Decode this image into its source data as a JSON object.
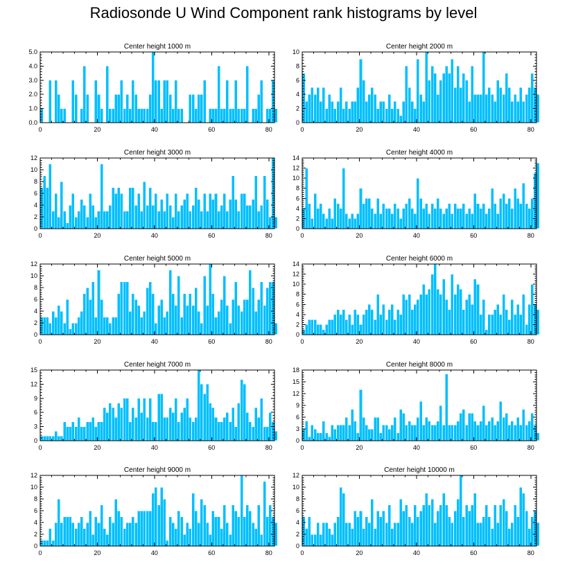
{
  "page_title": "Radiosonde U Wind Component rank histograms by level",
  "colors": {
    "bar": "#00bfff",
    "axis": "#000000"
  },
  "chart_data": [
    {
      "type": "bar",
      "title": "Center height 1000 m",
      "xlabel": "",
      "ylabel": "",
      "xlim": [
        0,
        82
      ],
      "ylim": [
        0,
        5
      ],
      "yticks": [
        0,
        1,
        2,
        3,
        4,
        5
      ],
      "ytick_labels": [
        "0.0",
        "1.0",
        "2.0",
        "3.0",
        "4.0",
        "5.0"
      ],
      "xticks": [
        0,
        20,
        40,
        60,
        80
      ],
      "values": [
        1,
        0,
        0,
        3,
        0,
        3,
        2,
        1,
        1,
        0,
        0,
        3,
        2,
        0,
        1,
        4,
        2,
        0,
        0,
        3,
        2,
        1,
        0,
        4,
        1,
        1,
        2,
        2,
        3,
        1,
        2,
        1,
        3,
        2,
        1,
        1,
        1,
        1,
        2,
        5,
        3,
        3,
        1,
        3,
        3,
        2,
        1,
        3,
        1,
        1,
        0,
        0,
        2,
        2,
        1,
        2,
        2,
        3,
        0,
        1,
        1,
        1,
        4,
        1,
        1,
        3,
        1,
        1,
        3,
        1,
        1,
        1,
        4,
        0,
        1,
        1,
        2,
        3,
        0,
        1,
        1,
        3,
        1
      ]
    },
    {
      "type": "bar",
      "title": "Center height 2000 m",
      "xlabel": "",
      "ylabel": "",
      "xlim": [
        0,
        82
      ],
      "ylim": [
        0,
        10
      ],
      "yticks": [
        0,
        2,
        4,
        6,
        8,
        10
      ],
      "ytick_labels": [
        "0",
        "2",
        "4",
        "6",
        "8",
        "10"
      ],
      "xticks": [
        0,
        20,
        40,
        60,
        80
      ],
      "values": [
        7,
        3,
        4,
        5,
        4,
        5,
        3,
        5,
        2,
        4,
        3,
        2,
        3,
        5,
        2,
        3,
        2,
        3,
        3,
        5,
        9,
        6,
        3,
        4,
        5,
        4,
        2,
        3,
        3,
        2,
        4,
        2,
        3,
        2,
        1,
        3,
        8,
        5,
        3,
        2,
        9,
        4,
        3,
        10,
        6,
        8,
        7,
        4,
        6,
        7,
        8,
        7,
        9,
        5,
        8,
        5,
        7,
        6,
        3,
        8,
        4,
        4,
        4,
        10,
        4,
        5,
        4,
        3,
        6,
        5,
        4,
        7,
        5,
        3,
        4,
        3,
        5,
        3,
        4,
        5,
        7,
        5,
        4
      ]
    },
    {
      "type": "bar",
      "title": "Center height 3000 m",
      "xlabel": "",
      "ylabel": "",
      "xlim": [
        0,
        82
      ],
      "ylim": [
        0,
        12
      ],
      "yticks": [
        0,
        2,
        4,
        6,
        8,
        10,
        12
      ],
      "ytick_labels": [
        "0",
        "2",
        "4",
        "6",
        "8",
        "10",
        "12"
      ],
      "xticks": [
        0,
        20,
        40,
        60,
        80
      ],
      "values": [
        7,
        9,
        7,
        11,
        3,
        6,
        2,
        8,
        3,
        1,
        4,
        6,
        2,
        3,
        5,
        4,
        2,
        6,
        4,
        2,
        3,
        11,
        3,
        3,
        4,
        7,
        6,
        7,
        6,
        3,
        3,
        7,
        7,
        4,
        6,
        3,
        8,
        4,
        7,
        4,
        6,
        3,
        5,
        3,
        6,
        4,
        2,
        6,
        3,
        4,
        5,
        6,
        3,
        4,
        7,
        5,
        3,
        6,
        3,
        6,
        5,
        6,
        3,
        4,
        6,
        3,
        5,
        9,
        5,
        3,
        6,
        6,
        4,
        4,
        5,
        9,
        3,
        4,
        9,
        5,
        2,
        12,
        2
      ]
    },
    {
      "type": "bar",
      "title": "Center height 4000 m",
      "xlabel": "",
      "ylabel": "",
      "xlim": [
        0,
        82
      ],
      "ylim": [
        0,
        14
      ],
      "yticks": [
        0,
        2,
        4,
        6,
        8,
        10,
        12,
        14
      ],
      "ytick_labels": [
        "0",
        "2",
        "4",
        "6",
        "8",
        "10",
        "12",
        "14"
      ],
      "xticks": [
        0,
        20,
        40,
        60,
        80
      ],
      "values": [
        4,
        12,
        5,
        2,
        7,
        4,
        5,
        3,
        2,
        4,
        2,
        6,
        5,
        4,
        12,
        3,
        2,
        3,
        2,
        3,
        8,
        5,
        6,
        6,
        4,
        3,
        6,
        3,
        5,
        4,
        4,
        3,
        5,
        4,
        2,
        4,
        5,
        6,
        4,
        3,
        10,
        6,
        4,
        5,
        3,
        5,
        4,
        6,
        4,
        3,
        4,
        5,
        3,
        5,
        4,
        4,
        5,
        3,
        4,
        3,
        7,
        5,
        4,
        5,
        3,
        4,
        8,
        5,
        3,
        6,
        7,
        5,
        6,
        4,
        8,
        6,
        5,
        9,
        5,
        4,
        6,
        11,
        13
      ]
    },
    {
      "type": "bar",
      "title": "Center height 5000 m",
      "xlabel": "",
      "ylabel": "",
      "xlim": [
        0,
        82
      ],
      "ylim": [
        0,
        12
      ],
      "yticks": [
        0,
        2,
        4,
        6,
        8,
        10,
        12
      ],
      "ytick_labels": [
        "0",
        "2",
        "4",
        "6",
        "8",
        "10",
        "12"
      ],
      "xticks": [
        0,
        20,
        40,
        60,
        80
      ],
      "values": [
        3,
        3,
        3,
        2,
        4,
        3,
        5,
        4,
        2,
        6,
        1,
        2,
        2,
        3,
        4,
        7,
        8,
        6,
        9,
        3,
        11,
        6,
        3,
        3,
        2,
        3,
        3,
        7,
        9,
        9,
        9,
        4,
        7,
        6,
        5,
        3,
        4,
        8,
        9,
        7,
        2,
        5,
        6,
        3,
        4,
        11,
        7,
        5,
        10,
        3,
        7,
        5,
        7,
        5,
        8,
        4,
        2,
        10,
        5,
        12,
        7,
        3,
        4,
        6,
        10,
        5,
        2,
        6,
        9,
        5,
        4,
        6,
        6,
        11,
        8,
        4,
        6,
        9,
        5,
        8,
        9,
        9,
        2
      ]
    },
    {
      "type": "bar",
      "title": "Center height 6000 m",
      "xlabel": "",
      "ylabel": "",
      "xlim": [
        0,
        82
      ],
      "ylim": [
        0,
        14
      ],
      "yticks": [
        0,
        2,
        4,
        6,
        8,
        10,
        12,
        14
      ],
      "ytick_labels": [
        "0",
        "2",
        "4",
        "6",
        "8",
        "10",
        "12",
        "14"
      ],
      "xticks": [
        0,
        20,
        40,
        60,
        80
      ],
      "values": [
        1,
        2,
        3,
        3,
        3,
        2,
        2,
        1,
        2,
        3,
        3,
        4,
        5,
        4,
        5,
        3,
        4,
        2,
        5,
        4,
        2,
        4,
        5,
        6,
        5,
        3,
        8,
        4,
        6,
        3,
        5,
        6,
        3,
        5,
        4,
        8,
        7,
        8,
        5,
        6,
        7,
        8,
        10,
        8,
        9,
        12,
        14,
        9,
        8,
        11,
        7,
        5,
        12,
        8,
        10,
        9,
        5,
        7,
        8,
        6,
        11,
        10,
        4,
        7,
        1,
        4,
        4,
        5,
        6,
        4,
        8,
        5,
        3,
        7,
        4,
        6,
        4,
        8,
        2,
        6,
        10,
        6,
        5
      ]
    },
    {
      "type": "bar",
      "title": "Center height 7000 m",
      "xlabel": "",
      "ylabel": "",
      "xlim": [
        0,
        82
      ],
      "ylim": [
        0,
        15
      ],
      "yticks": [
        0,
        3,
        6,
        9,
        12,
        15
      ],
      "ytick_labels": [
        "0",
        "3",
        "6",
        "9",
        "12",
        "15"
      ],
      "xticks": [
        0,
        20,
        40,
        60,
        80
      ],
      "values": [
        1,
        1,
        1,
        1,
        1,
        2,
        1,
        1,
        4,
        3,
        3,
        4,
        3,
        5,
        3,
        3,
        4,
        4,
        5,
        3,
        4,
        4,
        7,
        6,
        8,
        7,
        5,
        8,
        7,
        9,
        9,
        4,
        7,
        5,
        9,
        6,
        9,
        5,
        9,
        4,
        4,
        10,
        10,
        5,
        5,
        7,
        6,
        9,
        4,
        6,
        7,
        9,
        5,
        4,
        5,
        15,
        12,
        10,
        12,
        8,
        7,
        5,
        4,
        4,
        5,
        6,
        4,
        7,
        3,
        8,
        13,
        12,
        6,
        4,
        3,
        7,
        5,
        9,
        3,
        3,
        6,
        4,
        2
      ]
    },
    {
      "type": "bar",
      "title": "Center height 8000 m",
      "xlabel": "",
      "ylabel": "",
      "xlim": [
        0,
        82
      ],
      "ylim": [
        0,
        18
      ],
      "yticks": [
        0,
        3,
        6,
        9,
        12,
        15,
        18
      ],
      "ytick_labels": [
        "0",
        "3",
        "6",
        "9",
        "12",
        "15",
        "18"
      ],
      "xticks": [
        0,
        20,
        40,
        60,
        80
      ],
      "values": [
        3,
        5,
        1,
        4,
        3,
        2,
        2,
        5,
        2,
        1,
        4,
        3,
        4,
        4,
        4,
        6,
        4,
        8,
        5,
        2,
        13,
        6,
        4,
        3,
        3,
        6,
        6,
        2,
        4,
        4,
        3,
        4,
        6,
        2,
        8,
        7,
        4,
        5,
        4,
        4,
        6,
        10,
        4,
        6,
        5,
        4,
        4,
        5,
        9,
        4,
        17,
        4,
        4,
        4,
        5,
        7,
        8,
        4,
        7,
        7,
        5,
        4,
        5,
        9,
        4,
        5,
        6,
        4,
        5,
        10,
        6,
        7,
        4,
        5,
        4,
        6,
        4,
        8,
        4,
        5,
        7,
        4,
        2
      ]
    },
    {
      "type": "bar",
      "title": "Center height 9000 m",
      "xlabel": "",
      "ylabel": "",
      "xlim": [
        0,
        82
      ],
      "ylim": [
        0,
        12
      ],
      "yticks": [
        0,
        2,
        4,
        6,
        8,
        10,
        12
      ],
      "ytick_labels": [
        "0",
        "2",
        "4",
        "6",
        "8",
        "10",
        "12"
      ],
      "xticks": [
        0,
        20,
        40,
        60,
        80
      ],
      "values": [
        1,
        1,
        1,
        3,
        1,
        4,
        8,
        4,
        5,
        5,
        5,
        4,
        3,
        4,
        5,
        3,
        4,
        6,
        2,
        5,
        4,
        7,
        3,
        2,
        5,
        4,
        8,
        6,
        5,
        3,
        4,
        4,
        5,
        4,
        6,
        6,
        6,
        6,
        6,
        9,
        10,
        7,
        10,
        8,
        1,
        5,
        4,
        3,
        6,
        5,
        2,
        4,
        3,
        9,
        6,
        4,
        8,
        7,
        4,
        2,
        6,
        5,
        5,
        3,
        7,
        4,
        2,
        7,
        6,
        5,
        12,
        5,
        7,
        6,
        4,
        3,
        7,
        2,
        11,
        5,
        7,
        5,
        4
      ]
    },
    {
      "type": "bar",
      "title": "Center height 10000 m",
      "xlabel": "",
      "ylabel": "",
      "xlim": [
        0,
        82
      ],
      "ylim": [
        0,
        12
      ],
      "yticks": [
        0,
        2,
        4,
        6,
        8,
        10,
        12
      ],
      "ytick_labels": [
        "0",
        "2",
        "4",
        "6",
        "8",
        "10",
        "12"
      ],
      "xticks": [
        0,
        20,
        40,
        60,
        80
      ],
      "values": [
        5,
        3,
        5,
        2,
        2,
        4,
        2,
        4,
        4,
        3,
        2,
        4,
        5,
        10,
        9,
        4,
        4,
        3,
        6,
        5,
        6,
        3,
        5,
        4,
        8,
        3,
        6,
        5,
        6,
        4,
        7,
        3,
        4,
        4,
        8,
        6,
        7,
        5,
        4,
        7,
        5,
        6,
        7,
        9,
        7,
        8,
        4,
        6,
        7,
        9,
        7,
        5,
        4,
        6,
        8,
        12,
        5,
        7,
        6,
        7,
        9,
        4,
        4,
        5,
        7,
        5,
        3,
        7,
        4,
        7,
        8,
        6,
        3,
        4,
        7,
        5,
        10,
        9,
        6,
        3,
        5,
        6,
        4
      ]
    }
  ]
}
